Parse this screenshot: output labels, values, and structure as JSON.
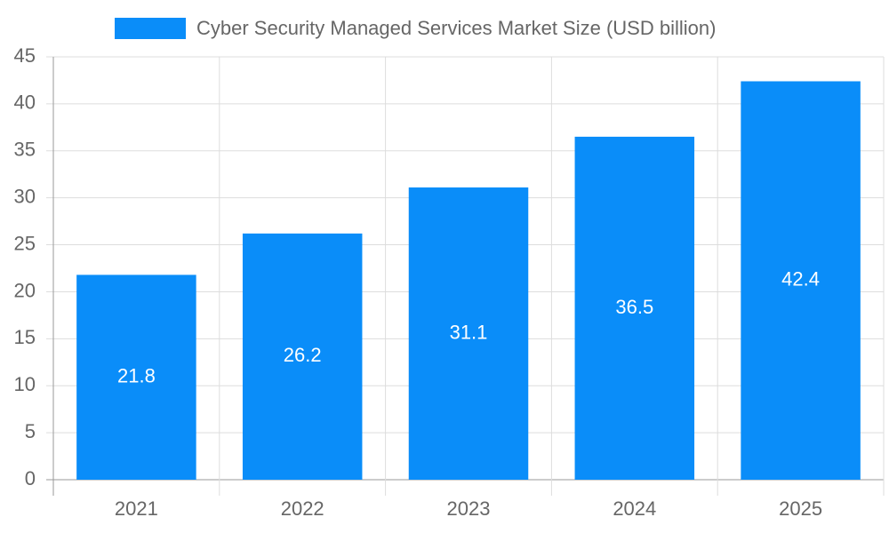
{
  "chart_data": {
    "type": "bar",
    "categories": [
      "2021",
      "2022",
      "2023",
      "2024",
      "2025"
    ],
    "series": [
      {
        "name": "Cyber Security Managed Services Market Size (USD billion)",
        "color": "#0a8df9",
        "values": [
          21.8,
          26.2,
          31.1,
          36.5,
          42.4
        ]
      }
    ],
    "ylim": [
      0,
      45
    ],
    "yticks": [
      0,
      5,
      10,
      15,
      20,
      25,
      30,
      35,
      40,
      45
    ],
    "grid": true,
    "legend": "top"
  }
}
